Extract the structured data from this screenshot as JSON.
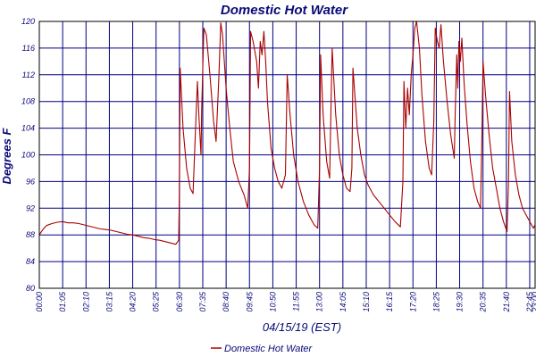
{
  "chart_data": {
    "type": "line",
    "title": "Domestic Hot Water",
    "ylabel": "Degrees F",
    "xlabel": "04/15/19 (EST)",
    "ylim": [
      80,
      120
    ],
    "yticks": [
      80,
      84,
      88,
      92,
      96,
      100,
      104,
      108,
      112,
      116,
      120
    ],
    "xlim": [
      "00:00",
      "23:00"
    ],
    "xticks": [
      "00:00",
      "01:05",
      "02:10",
      "03:15",
      "04:20",
      "05:25",
      "06:30",
      "07:35",
      "08:40",
      "09:45",
      "10:50",
      "11:55",
      "13:00",
      "14:05",
      "15:10",
      "16:15",
      "17:20",
      "18:25",
      "19:30",
      "20:35",
      "21:40",
      "22:45",
      "23:00"
    ],
    "grid": true,
    "legend_position": "bottom-center",
    "series": [
      {
        "name": "Domestic Hot Water",
        "color": "#aa0000",
        "points": [
          [
            "00:00",
            88.0
          ],
          [
            "00:10",
            88.8
          ],
          [
            "00:20",
            89.4
          ],
          [
            "00:35",
            89.7
          ],
          [
            "00:50",
            89.9
          ],
          [
            "01:05",
            90.0
          ],
          [
            "01:20",
            89.8
          ],
          [
            "01:35",
            89.8
          ],
          [
            "01:50",
            89.7
          ],
          [
            "02:05",
            89.5
          ],
          [
            "02:20",
            89.3
          ],
          [
            "02:35",
            89.1
          ],
          [
            "02:50",
            88.9
          ],
          [
            "03:05",
            88.8
          ],
          [
            "03:20",
            88.7
          ],
          [
            "03:35",
            88.5
          ],
          [
            "03:50",
            88.3
          ],
          [
            "04:05",
            88.1
          ],
          [
            "04:20",
            88.0
          ],
          [
            "04:35",
            87.8
          ],
          [
            "04:50",
            87.6
          ],
          [
            "05:05",
            87.5
          ],
          [
            "05:20",
            87.3
          ],
          [
            "05:35",
            87.2
          ],
          [
            "05:50",
            87.0
          ],
          [
            "06:05",
            86.8
          ],
          [
            "06:20",
            86.6
          ],
          [
            "06:28",
            87.2
          ],
          [
            "06:30",
            94.0
          ],
          [
            "06:32",
            113.0
          ],
          [
            "06:40",
            104.0
          ],
          [
            "06:50",
            98.0
          ],
          [
            "07:00",
            95.0
          ],
          [
            "07:08",
            94.2
          ],
          [
            "07:15",
            104.0
          ],
          [
            "07:20",
            111.0
          ],
          [
            "07:24",
            106.0
          ],
          [
            "07:30",
            100.0
          ],
          [
            "07:32",
            107.0
          ],
          [
            "07:38",
            119.0
          ],
          [
            "07:45",
            118.0
          ],
          [
            "07:55",
            112.0
          ],
          [
            "08:05",
            105.0
          ],
          [
            "08:12",
            102.0
          ],
          [
            "08:20",
            112.0
          ],
          [
            "08:25",
            119.8
          ],
          [
            "08:30",
            118.0
          ],
          [
            "08:40",
            110.0
          ],
          [
            "08:50",
            104.0
          ],
          [
            "09:00",
            99.0
          ],
          [
            "09:15",
            96.0
          ],
          [
            "09:30",
            94.0
          ],
          [
            "09:40",
            92.0
          ],
          [
            "09:45",
            98.0
          ],
          [
            "09:48",
            118.5
          ],
          [
            "09:55",
            117.0
          ],
          [
            "10:05",
            114.0
          ],
          [
            "10:10",
            110.0
          ],
          [
            "10:15",
            117.0
          ],
          [
            "10:20",
            115.0
          ],
          [
            "10:25",
            118.5
          ],
          [
            "10:30",
            114.0
          ],
          [
            "10:35",
            108.0
          ],
          [
            "10:45",
            101.0
          ],
          [
            "10:55",
            98.0
          ],
          [
            "11:05",
            96.0
          ],
          [
            "11:15",
            95.0
          ],
          [
            "11:25",
            97.0
          ],
          [
            "11:30",
            112.0
          ],
          [
            "11:38",
            106.0
          ],
          [
            "11:48",
            100.0
          ],
          [
            "12:00",
            96.0
          ],
          [
            "12:15",
            93.0
          ],
          [
            "12:30",
            91.0
          ],
          [
            "12:45",
            89.5
          ],
          [
            "12:55",
            89.0
          ],
          [
            "13:00",
            98.0
          ],
          [
            "13:03",
            115.0
          ],
          [
            "13:10",
            106.0
          ],
          [
            "13:20",
            99.0
          ],
          [
            "13:28",
            96.5
          ],
          [
            "13:35",
            116.0
          ],
          [
            "13:45",
            106.0
          ],
          [
            "13:55",
            100.0
          ],
          [
            "14:05",
            97.0
          ],
          [
            "14:15",
            95.0
          ],
          [
            "14:25",
            94.5
          ],
          [
            "14:30",
            98.0
          ],
          [
            "14:33",
            113.0
          ],
          [
            "14:45",
            104.0
          ],
          [
            "14:55",
            100.0
          ],
          [
            "15:05",
            97.0
          ],
          [
            "15:15",
            95.5
          ],
          [
            "15:30",
            94.0
          ],
          [
            "15:45",
            93.0
          ],
          [
            "16:00",
            92.0
          ],
          [
            "16:15",
            91.0
          ],
          [
            "16:30",
            90.0
          ],
          [
            "16:45",
            89.2
          ],
          [
            "16:52",
            96.0
          ],
          [
            "16:55",
            111.0
          ],
          [
            "17:00",
            104.0
          ],
          [
            "17:05",
            110.0
          ],
          [
            "17:10",
            106.0
          ],
          [
            "17:15",
            112.0
          ],
          [
            "17:20",
            115.0
          ],
          [
            "17:25",
            119.0
          ],
          [
            "17:30",
            120.0
          ],
          [
            "17:38",
            116.0
          ],
          [
            "17:45",
            109.0
          ],
          [
            "17:55",
            102.0
          ],
          [
            "18:05",
            98.0
          ],
          [
            "18:12",
            97.0
          ],
          [
            "18:18",
            105.0
          ],
          [
            "18:22",
            119.0
          ],
          [
            "18:28",
            117.0
          ],
          [
            "18:33",
            116.0
          ],
          [
            "18:38",
            119.5
          ],
          [
            "18:45",
            114.0
          ],
          [
            "18:55",
            108.0
          ],
          [
            "19:05",
            103.0
          ],
          [
            "19:15",
            99.5
          ],
          [
            "19:18",
            107.0
          ],
          [
            "19:22",
            115.0
          ],
          [
            "19:25",
            110.0
          ],
          [
            "19:28",
            117.0
          ],
          [
            "19:32",
            114.0
          ],
          [
            "19:36",
            117.5
          ],
          [
            "19:42",
            111.0
          ],
          [
            "19:50",
            105.0
          ],
          [
            "20:00",
            99.0
          ],
          [
            "20:10",
            95.0
          ],
          [
            "20:20",
            93.0
          ],
          [
            "20:28",
            92.0
          ],
          [
            "20:32",
            103.0
          ],
          [
            "20:35",
            114.0
          ],
          [
            "20:42",
            109.0
          ],
          [
            "20:52",
            103.0
          ],
          [
            "21:02",
            98.0
          ],
          [
            "21:12",
            95.0
          ],
          [
            "21:22",
            92.0
          ],
          [
            "21:32",
            90.0
          ],
          [
            "21:42",
            88.5
          ],
          [
            "21:46",
            96.0
          ],
          [
            "21:49",
            109.5
          ],
          [
            "21:55",
            102.0
          ],
          [
            "22:05",
            97.0
          ],
          [
            "22:15",
            94.0
          ],
          [
            "22:25",
            92.0
          ],
          [
            "22:35",
            91.0
          ],
          [
            "22:45",
            90.0
          ],
          [
            "22:55",
            89.0
          ],
          [
            "23:00",
            89.5
          ]
        ]
      }
    ]
  }
}
